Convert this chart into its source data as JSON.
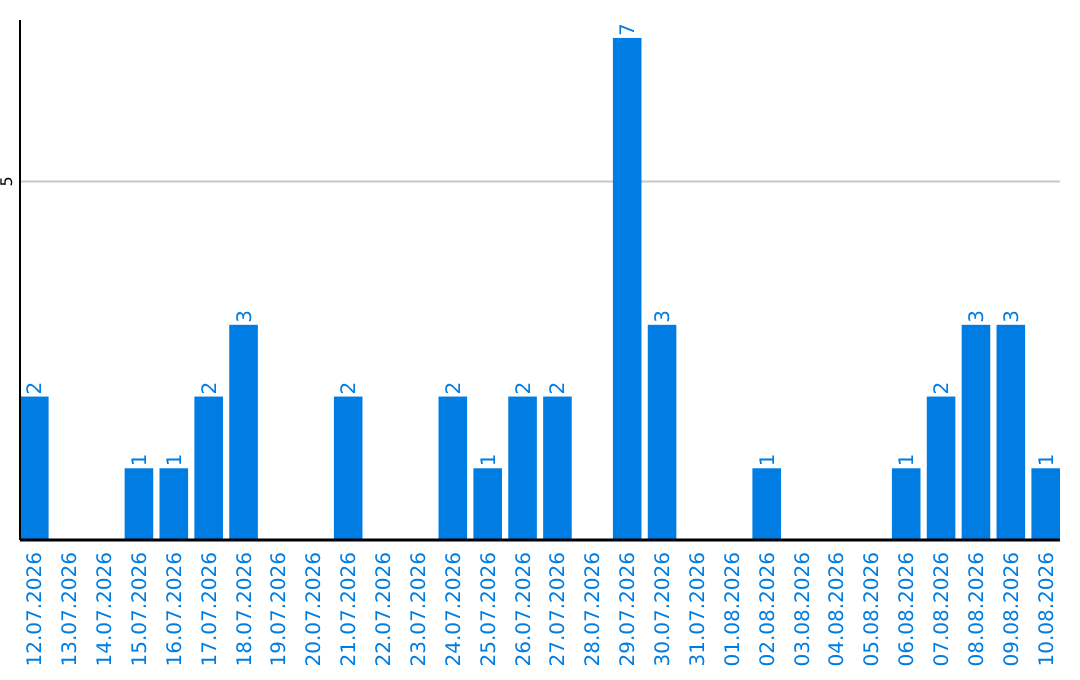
{
  "chart_data": {
    "type": "bar",
    "categories": [
      "12.07.2026",
      "13.07.2026",
      "14.07.2026",
      "15.07.2026",
      "16.07.2026",
      "17.07.2026",
      "18.07.2026",
      "19.07.2026",
      "20.07.2026",
      "21.07.2026",
      "22.07.2026",
      "23.07.2026",
      "24.07.2026",
      "25.07.2026",
      "26.07.2026",
      "27.07.2026",
      "28.07.2026",
      "29.07.2026",
      "30.07.2026",
      "31.07.2026",
      "01.08.2026",
      "02.08.2026",
      "03.08.2026",
      "04.08.2026",
      "05.08.2026",
      "06.08.2026",
      "07.08.2026",
      "08.08.2026",
      "09.08.2026",
      "10.08.2026"
    ],
    "values": [
      2,
      0,
      0,
      1,
      1,
      2,
      3,
      0,
      0,
      2,
      0,
      0,
      2,
      1,
      2,
      2,
      0,
      7,
      3,
      0,
      0,
      1,
      0,
      0,
      0,
      1,
      2,
      3,
      3,
      1
    ],
    "value_labels": [
      "2",
      null,
      null,
      "1",
      "1",
      "2",
      "3",
      null,
      null,
      "2",
      null,
      null,
      "2",
      "1",
      "2",
      "2",
      null,
      "7",
      "3",
      null,
      null,
      "1",
      null,
      null,
      null,
      "1",
      "2",
      "3",
      "3",
      "1"
    ],
    "color": "#007de2",
    "ylim": [
      0,
      7.25
    ],
    "yticks": [
      5
    ],
    "grid": "y"
  }
}
